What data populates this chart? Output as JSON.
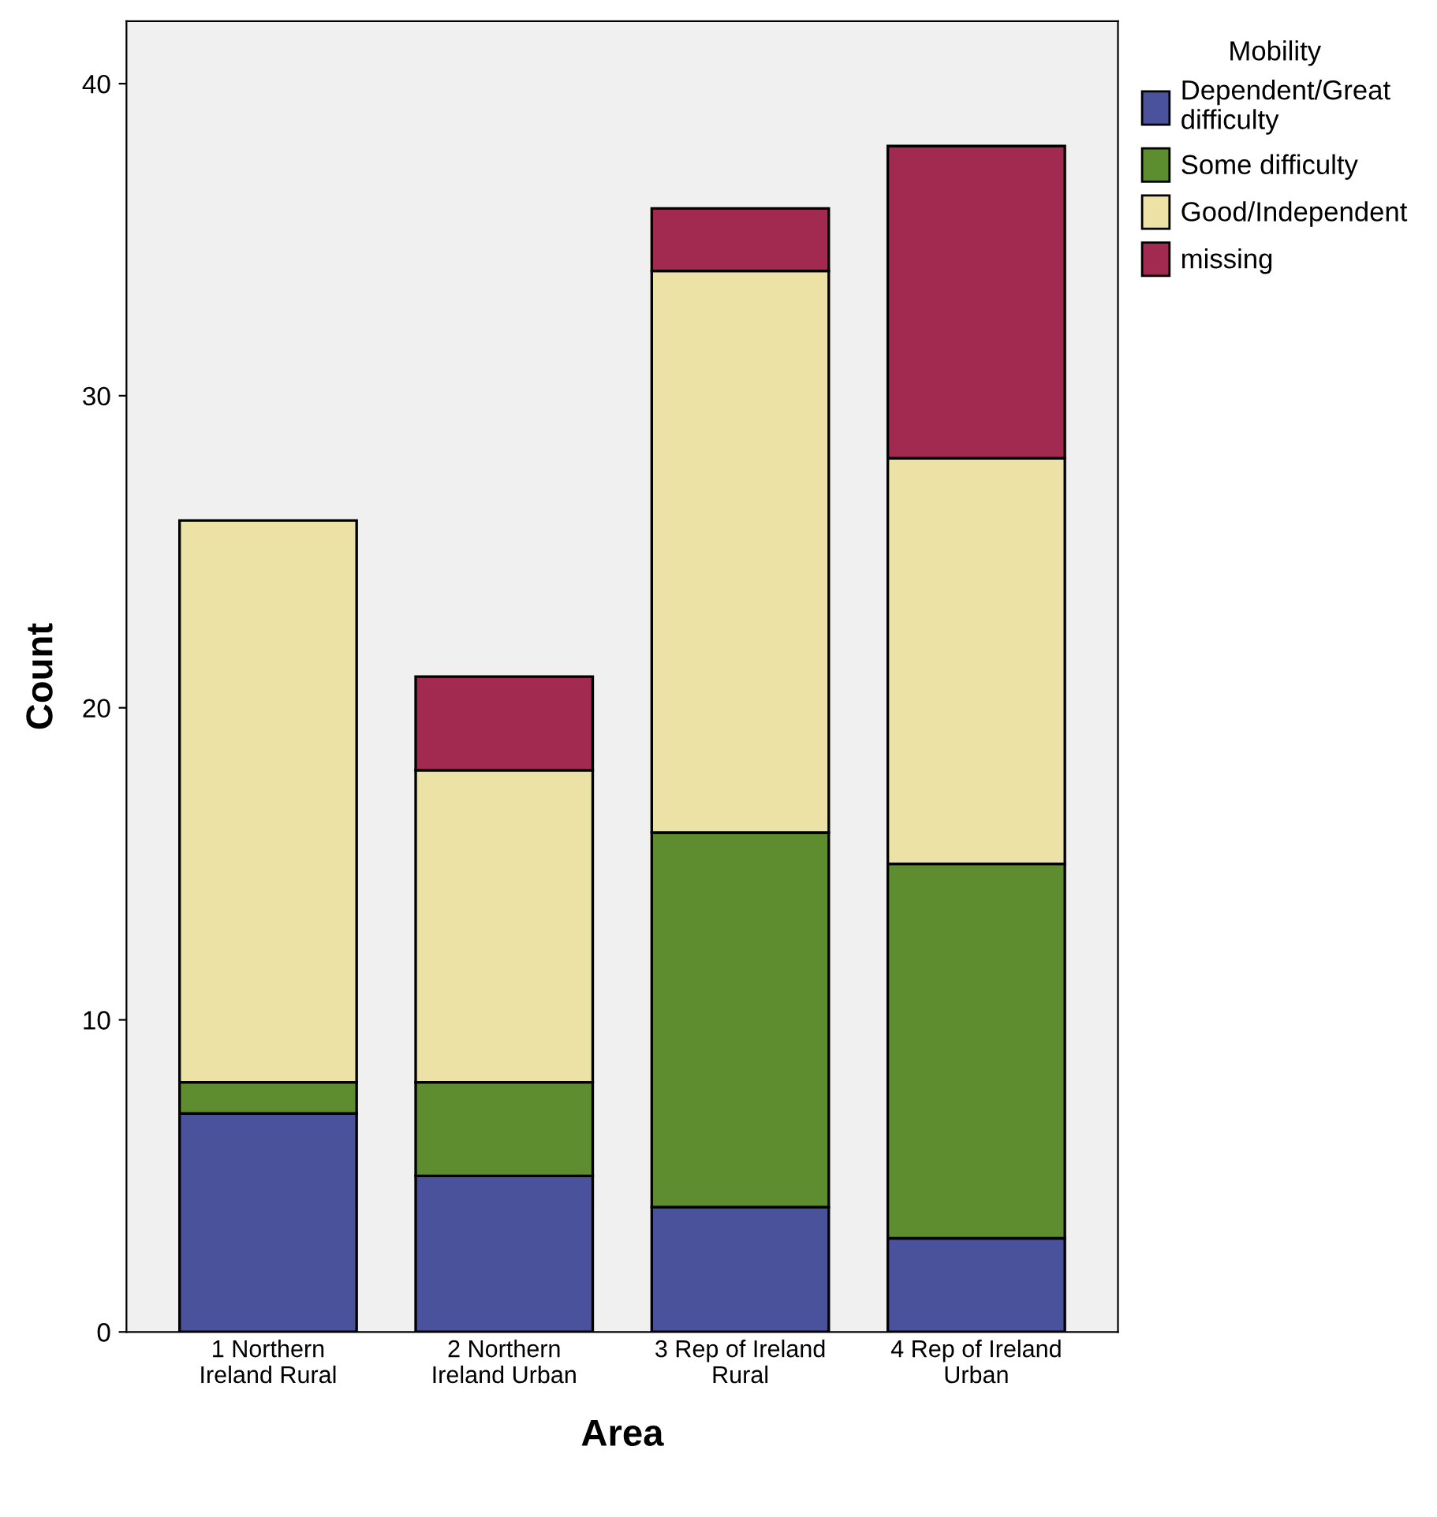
{
  "chart_data": {
    "type": "bar",
    "stacked": true,
    "xlabel": "Area",
    "ylabel": "Count",
    "legend_title": "Mobility",
    "categories": [
      "1 Northern\nIreland Rural",
      "2 Northern\nIreland Urban",
      "3 Rep of Ireland\nRural",
      "4 Rep of Ireland\nUrban"
    ],
    "series": [
      {
        "name": "Dependent/Great\ndifficulty",
        "color": "#4b529c",
        "values": [
          7,
          5,
          4,
          3
        ]
      },
      {
        "name": "Some difficulty",
        "color": "#5e8d2f",
        "values": [
          1,
          3,
          12,
          12
        ]
      },
      {
        "name": "Good/Independent",
        "color": "#ece2a6",
        "values": [
          18,
          10,
          18,
          13
        ]
      },
      {
        "name": "missing",
        "color": "#a2294f",
        "values": [
          null,
          3,
          2,
          10
        ]
      }
    ],
    "ylim": [
      0,
      42
    ],
    "yticks": [
      0,
      10,
      20,
      30,
      40
    ],
    "grid": false,
    "legend": "top right"
  }
}
